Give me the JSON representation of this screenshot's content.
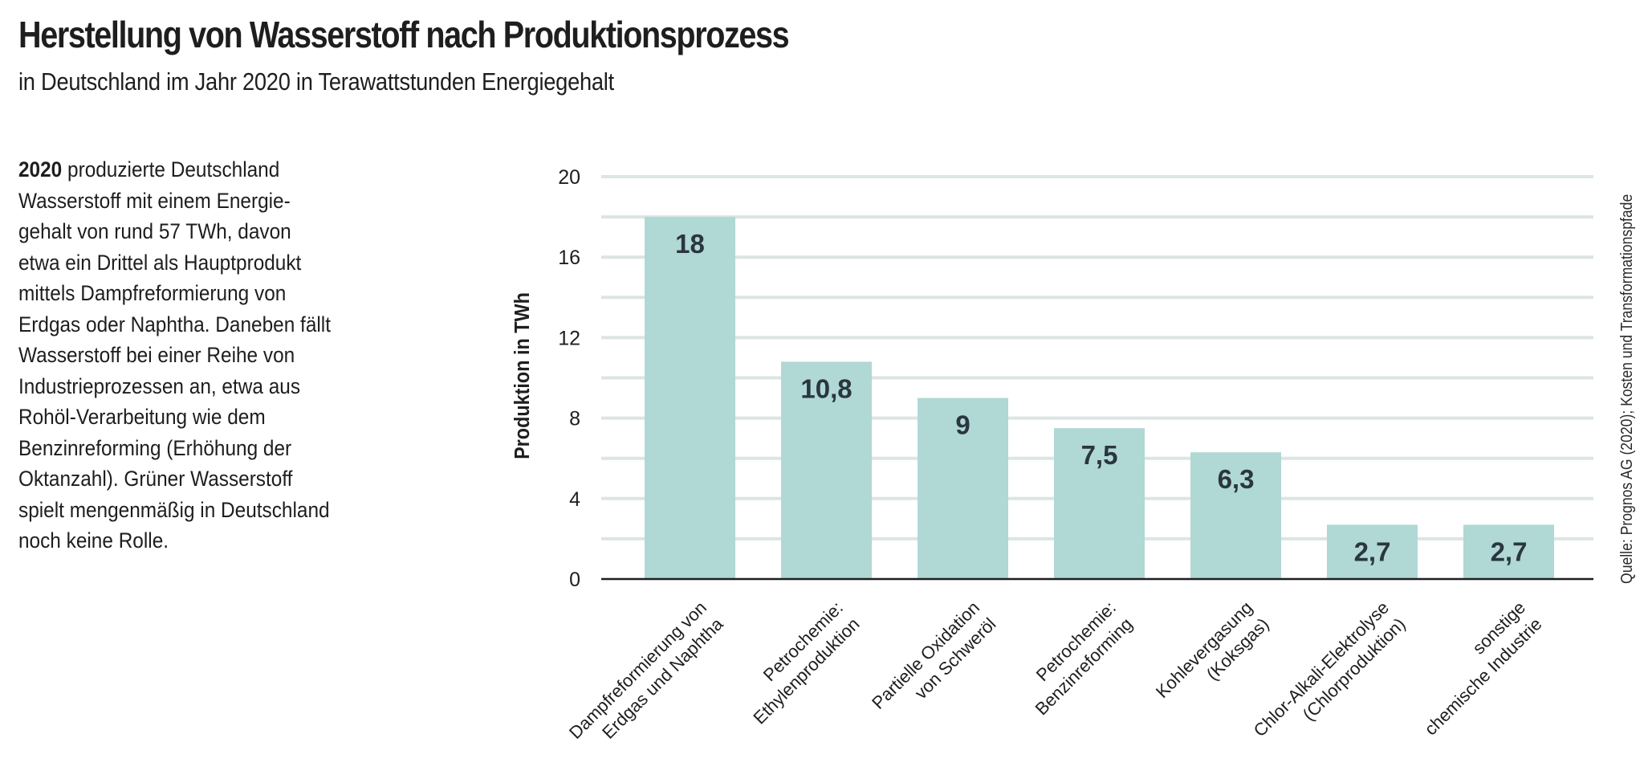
{
  "header": {
    "title": "Herstellung von Wasserstoff nach Produktionsprozess",
    "subtitle": "in Deutschland im Jahr 2020 in Terawattstunden Energiegehalt"
  },
  "description": {
    "lead_bold": "2020",
    "lines": [
      " produzierte Deutschland",
      "Wasserstoff mit einem Energie-",
      "gehalt von rund 57 TWh, davon",
      "etwa ein Drittel als Hauptprodukt",
      "mittels Dampfreformierung von",
      "Erdgas oder Naphtha. Daneben fällt",
      "Wasserstoff bei einer Reihe von",
      "Industrieprozessen an, etwa aus",
      "Rohöl-Verarbeitung wie dem",
      "Benzinreforming (Erhöhung der",
      "Oktanzahl). Grüner Wasserstoff",
      "spielt mengenmäßig in Deutschland",
      "noch keine Rolle."
    ]
  },
  "source": "Quelle: Prognos AG (2020); Kosten und Transformationspfade",
  "colors": {
    "bar": "#b0d8d5",
    "grid": "#dbe5e4",
    "axis": "#1e1e1e",
    "value_label": "#2a3640"
  },
  "chart_data": {
    "type": "bar",
    "title": "Herstellung von Wasserstoff nach Produktionsprozess",
    "subtitle": "in Deutschland im Jahr 2020 in Terawattstunden Energiegehalt",
    "xlabel": "",
    "ylabel": "Produktion in TWh",
    "ylim": [
      0,
      20
    ],
    "yticks": [
      0,
      4,
      8,
      12,
      16,
      20
    ],
    "ytick_labels": [
      "0",
      "4",
      "8",
      "12",
      "16",
      "20"
    ],
    "grid_step": 2,
    "grid": true,
    "categories": [
      [
        "Dampfreformierung von",
        "Erdgas und Naphtha"
      ],
      [
        "Petrochemie:",
        "Ethylenproduktion"
      ],
      [
        "Partielle Oxidation",
        "von Schweröl"
      ],
      [
        "Petrochemie:",
        "Benzinreforming"
      ],
      [
        "Kohlevergasung",
        "(Koksgas)"
      ],
      [
        "Chlor-Alkali-Elektrolyse",
        "(Chlorproduktion)"
      ],
      [
        "sonstige",
        "chemische Industrie"
      ]
    ],
    "values": [
      18,
      10.8,
      9,
      7.5,
      6.3,
      2.7,
      2.7
    ],
    "value_labels": [
      "18",
      "10,8",
      "9",
      "7,5",
      "6,3",
      "2,7",
      "2,7"
    ],
    "legend": "none"
  }
}
